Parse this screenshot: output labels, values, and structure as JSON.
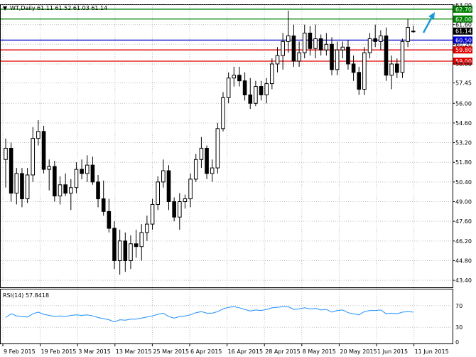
{
  "header": {
    "symbol_label": "WT,Daily",
    "ohlc_text": "61.11 61.52 61.03 61.14"
  },
  "rsi_panel": {
    "label": "RSI(14) 57.8418",
    "levels": [
      "70",
      "30",
      "0"
    ]
  },
  "colors": {
    "background": "#ffffff",
    "candle_line": "#000000",
    "grid": "#c0c0c0",
    "rsi_line": "#1e90ff",
    "level_green": "#008000",
    "level_blue": "#0000cd",
    "level_red": "#e00000",
    "arrow": "#1e9bd7"
  },
  "chart_data": {
    "type": "candlestick",
    "y_axis_ticks": [
      "63.00",
      "61.60",
      "60.20",
      "58.80",
      "57.45",
      "56.00",
      "54.60",
      "53.20",
      "51.80",
      "50.40",
      "49.00",
      "47.60",
      "46.20",
      "44.80",
      "43.40"
    ],
    "ylim": [
      42.9,
      63.0
    ],
    "x_axis_labels": [
      "9 Feb 2015",
      "19 Feb 2015",
      "3 Mar 2015",
      "13 Mar 2015",
      "25 Mar 2015",
      "6 Apr 2015",
      "16 Apr 2015",
      "28 Apr 2015",
      "8 May 2015",
      "20 May 2015",
      "1 Jun 2015",
      "11 Jun 2015"
    ],
    "horizontal_levels": [
      {
        "value": 62.7,
        "label": "62.70",
        "color": "#008000"
      },
      {
        "value": 62.0,
        "label": "62.00",
        "color": "#008000"
      },
      {
        "value": 61.14,
        "label": "61.14",
        "color": "#000000"
      },
      {
        "value": 60.5,
        "label": "60.50",
        "color": "#0000cd"
      },
      {
        "value": 59.8,
        "label": "59.80",
        "color": "#e00000"
      },
      {
        "value": 59.0,
        "label": "59.00",
        "color": "#e00000"
      }
    ],
    "candles": [
      {
        "o": 52.0,
        "h": 53.5,
        "l": 50.0,
        "c": 52.8
      },
      {
        "o": 52.8,
        "h": 53.2,
        "l": 49.0,
        "c": 49.6
      },
      {
        "o": 49.6,
        "h": 51.4,
        "l": 48.8,
        "c": 51.0
      },
      {
        "o": 51.0,
        "h": 51.4,
        "l": 48.6,
        "c": 49.2
      },
      {
        "o": 49.2,
        "h": 51.4,
        "l": 48.9,
        "c": 50.9
      },
      {
        "o": 50.9,
        "h": 54.3,
        "l": 50.4,
        "c": 53.5
      },
      {
        "o": 53.5,
        "h": 54.8,
        "l": 53.0,
        "c": 54.0
      },
      {
        "o": 54.0,
        "h": 54.4,
        "l": 51.0,
        "c": 51.3
      },
      {
        "o": 51.3,
        "h": 52.0,
        "l": 49.8,
        "c": 51.5
      },
      {
        "o": 51.5,
        "h": 51.9,
        "l": 49.0,
        "c": 49.4
      },
      {
        "o": 49.4,
        "h": 50.8,
        "l": 48.8,
        "c": 50.2
      },
      {
        "o": 50.2,
        "h": 51.0,
        "l": 49.4,
        "c": 49.6
      },
      {
        "o": 49.6,
        "h": 50.6,
        "l": 48.4,
        "c": 50.0
      },
      {
        "o": 50.0,
        "h": 51.8,
        "l": 49.6,
        "c": 51.3
      },
      {
        "o": 51.3,
        "h": 52.0,
        "l": 50.6,
        "c": 51.0
      },
      {
        "o": 51.0,
        "h": 52.3,
        "l": 50.4,
        "c": 51.6
      },
      {
        "o": 51.6,
        "h": 52.2,
        "l": 50.2,
        "c": 50.4
      },
      {
        "o": 50.4,
        "h": 50.9,
        "l": 48.6,
        "c": 49.2
      },
      {
        "o": 49.2,
        "h": 50.5,
        "l": 48.0,
        "c": 48.3
      },
      {
        "o": 48.3,
        "h": 49.2,
        "l": 46.8,
        "c": 47.1
      },
      {
        "o": 47.1,
        "h": 47.6,
        "l": 44.2,
        "c": 44.8
      },
      {
        "o": 44.8,
        "h": 47.0,
        "l": 43.8,
        "c": 46.2
      },
      {
        "o": 46.2,
        "h": 46.8,
        "l": 44.0,
        "c": 44.8
      },
      {
        "o": 44.8,
        "h": 46.6,
        "l": 44.2,
        "c": 46.0
      },
      {
        "o": 46.0,
        "h": 47.0,
        "l": 45.0,
        "c": 45.8
      },
      {
        "o": 45.8,
        "h": 47.4,
        "l": 44.8,
        "c": 46.8
      },
      {
        "o": 46.8,
        "h": 48.0,
        "l": 46.2,
        "c": 47.4
      },
      {
        "o": 47.4,
        "h": 49.2,
        "l": 47.0,
        "c": 48.8
      },
      {
        "o": 48.8,
        "h": 50.8,
        "l": 48.4,
        "c": 50.4
      },
      {
        "o": 50.4,
        "h": 52.0,
        "l": 50.0,
        "c": 51.2
      },
      {
        "o": 51.2,
        "h": 51.6,
        "l": 48.4,
        "c": 49.0
      },
      {
        "o": 49.0,
        "h": 49.3,
        "l": 47.6,
        "c": 47.9
      },
      {
        "o": 47.9,
        "h": 49.6,
        "l": 47.0,
        "c": 49.0
      },
      {
        "o": 49.0,
        "h": 49.5,
        "l": 48.5,
        "c": 49.2
      },
      {
        "o": 49.2,
        "h": 51.0,
        "l": 48.6,
        "c": 50.6
      },
      {
        "o": 50.6,
        "h": 52.4,
        "l": 50.4,
        "c": 52.0
      },
      {
        "o": 52.0,
        "h": 53.6,
        "l": 51.4,
        "c": 52.8
      },
      {
        "o": 52.8,
        "h": 53.0,
        "l": 50.6,
        "c": 51.0
      },
      {
        "o": 51.0,
        "h": 52.0,
        "l": 50.4,
        "c": 51.4
      },
      {
        "o": 51.4,
        "h": 54.6,
        "l": 51.0,
        "c": 54.2
      },
      {
        "o": 54.2,
        "h": 56.8,
        "l": 54.0,
        "c": 56.4
      },
      {
        "o": 56.4,
        "h": 58.2,
        "l": 56.0,
        "c": 57.8
      },
      {
        "o": 57.8,
        "h": 58.6,
        "l": 57.2,
        "c": 58.0
      },
      {
        "o": 58.0,
        "h": 58.6,
        "l": 57.2,
        "c": 57.6
      },
      {
        "o": 57.6,
        "h": 58.2,
        "l": 56.2,
        "c": 56.6
      },
      {
        "o": 56.6,
        "h": 57.8,
        "l": 55.6,
        "c": 56.0
      },
      {
        "o": 56.0,
        "h": 57.6,
        "l": 55.8,
        "c": 57.2
      },
      {
        "o": 57.2,
        "h": 57.6,
        "l": 56.2,
        "c": 56.6
      },
      {
        "o": 56.6,
        "h": 57.8,
        "l": 56.0,
        "c": 57.4
      },
      {
        "o": 57.4,
        "h": 59.2,
        "l": 57.0,
        "c": 58.8
      },
      {
        "o": 58.8,
        "h": 60.0,
        "l": 58.2,
        "c": 59.4
      },
      {
        "o": 59.4,
        "h": 61.0,
        "l": 58.4,
        "c": 60.4
      },
      {
        "o": 60.4,
        "h": 62.6,
        "l": 59.6,
        "c": 60.8
      },
      {
        "o": 60.8,
        "h": 61.6,
        "l": 58.6,
        "c": 59.0
      },
      {
        "o": 59.0,
        "h": 60.4,
        "l": 58.6,
        "c": 59.6
      },
      {
        "o": 59.6,
        "h": 61.6,
        "l": 59.2,
        "c": 61.0
      },
      {
        "o": 61.0,
        "h": 61.5,
        "l": 59.4,
        "c": 59.9
      },
      {
        "o": 59.9,
        "h": 61.6,
        "l": 59.2,
        "c": 60.6
      },
      {
        "o": 60.6,
        "h": 60.9,
        "l": 59.4,
        "c": 59.8
      },
      {
        "o": 59.8,
        "h": 61.0,
        "l": 59.4,
        "c": 60.2
      },
      {
        "o": 60.2,
        "h": 60.7,
        "l": 58.0,
        "c": 58.4
      },
      {
        "o": 58.4,
        "h": 60.4,
        "l": 58.0,
        "c": 59.8
      },
      {
        "o": 59.8,
        "h": 60.4,
        "l": 59.2,
        "c": 60.0
      },
      {
        "o": 60.0,
        "h": 60.5,
        "l": 58.4,
        "c": 58.8
      },
      {
        "o": 58.8,
        "h": 59.4,
        "l": 57.6,
        "c": 58.2
      },
      {
        "o": 58.2,
        "h": 58.6,
        "l": 56.6,
        "c": 57.0
      },
      {
        "o": 57.0,
        "h": 60.0,
        "l": 56.6,
        "c": 59.6
      },
      {
        "o": 59.6,
        "h": 61.0,
        "l": 59.2,
        "c": 60.6
      },
      {
        "o": 60.6,
        "h": 61.6,
        "l": 60.0,
        "c": 60.4
      },
      {
        "o": 60.4,
        "h": 61.2,
        "l": 59.8,
        "c": 60.8
      },
      {
        "o": 60.8,
        "h": 61.4,
        "l": 57.6,
        "c": 58.0
      },
      {
        "o": 58.0,
        "h": 59.4,
        "l": 57.0,
        "c": 58.8
      },
      {
        "o": 58.8,
        "h": 59.2,
        "l": 57.8,
        "c": 58.2
      },
      {
        "o": 58.2,
        "h": 60.6,
        "l": 57.8,
        "c": 60.4
      },
      {
        "o": 60.4,
        "h": 62.0,
        "l": 60.0,
        "c": 61.4
      },
      {
        "o": 61.11,
        "h": 61.52,
        "l": 61.03,
        "c": 61.14
      }
    ],
    "rsi": [
      48,
      55,
      51,
      50,
      49,
      55,
      58,
      54,
      52,
      50,
      51,
      50,
      52,
      53,
      52,
      53,
      51,
      48,
      46,
      44,
      40,
      44,
      43,
      45,
      45,
      47,
      49,
      51,
      54,
      56,
      50,
      47,
      50,
      51,
      53,
      57,
      59,
      56,
      56,
      59,
      64,
      67,
      68,
      66,
      63,
      60,
      62,
      61,
      63,
      66,
      67,
      68,
      68,
      63,
      64,
      66,
      64,
      65,
      62,
      63,
      58,
      61,
      62,
      57,
      55,
      53,
      59,
      61,
      61,
      62,
      55,
      56,
      55,
      58,
      59,
      58
    ],
    "rsi_ylim": [
      0,
      100
    ]
  }
}
